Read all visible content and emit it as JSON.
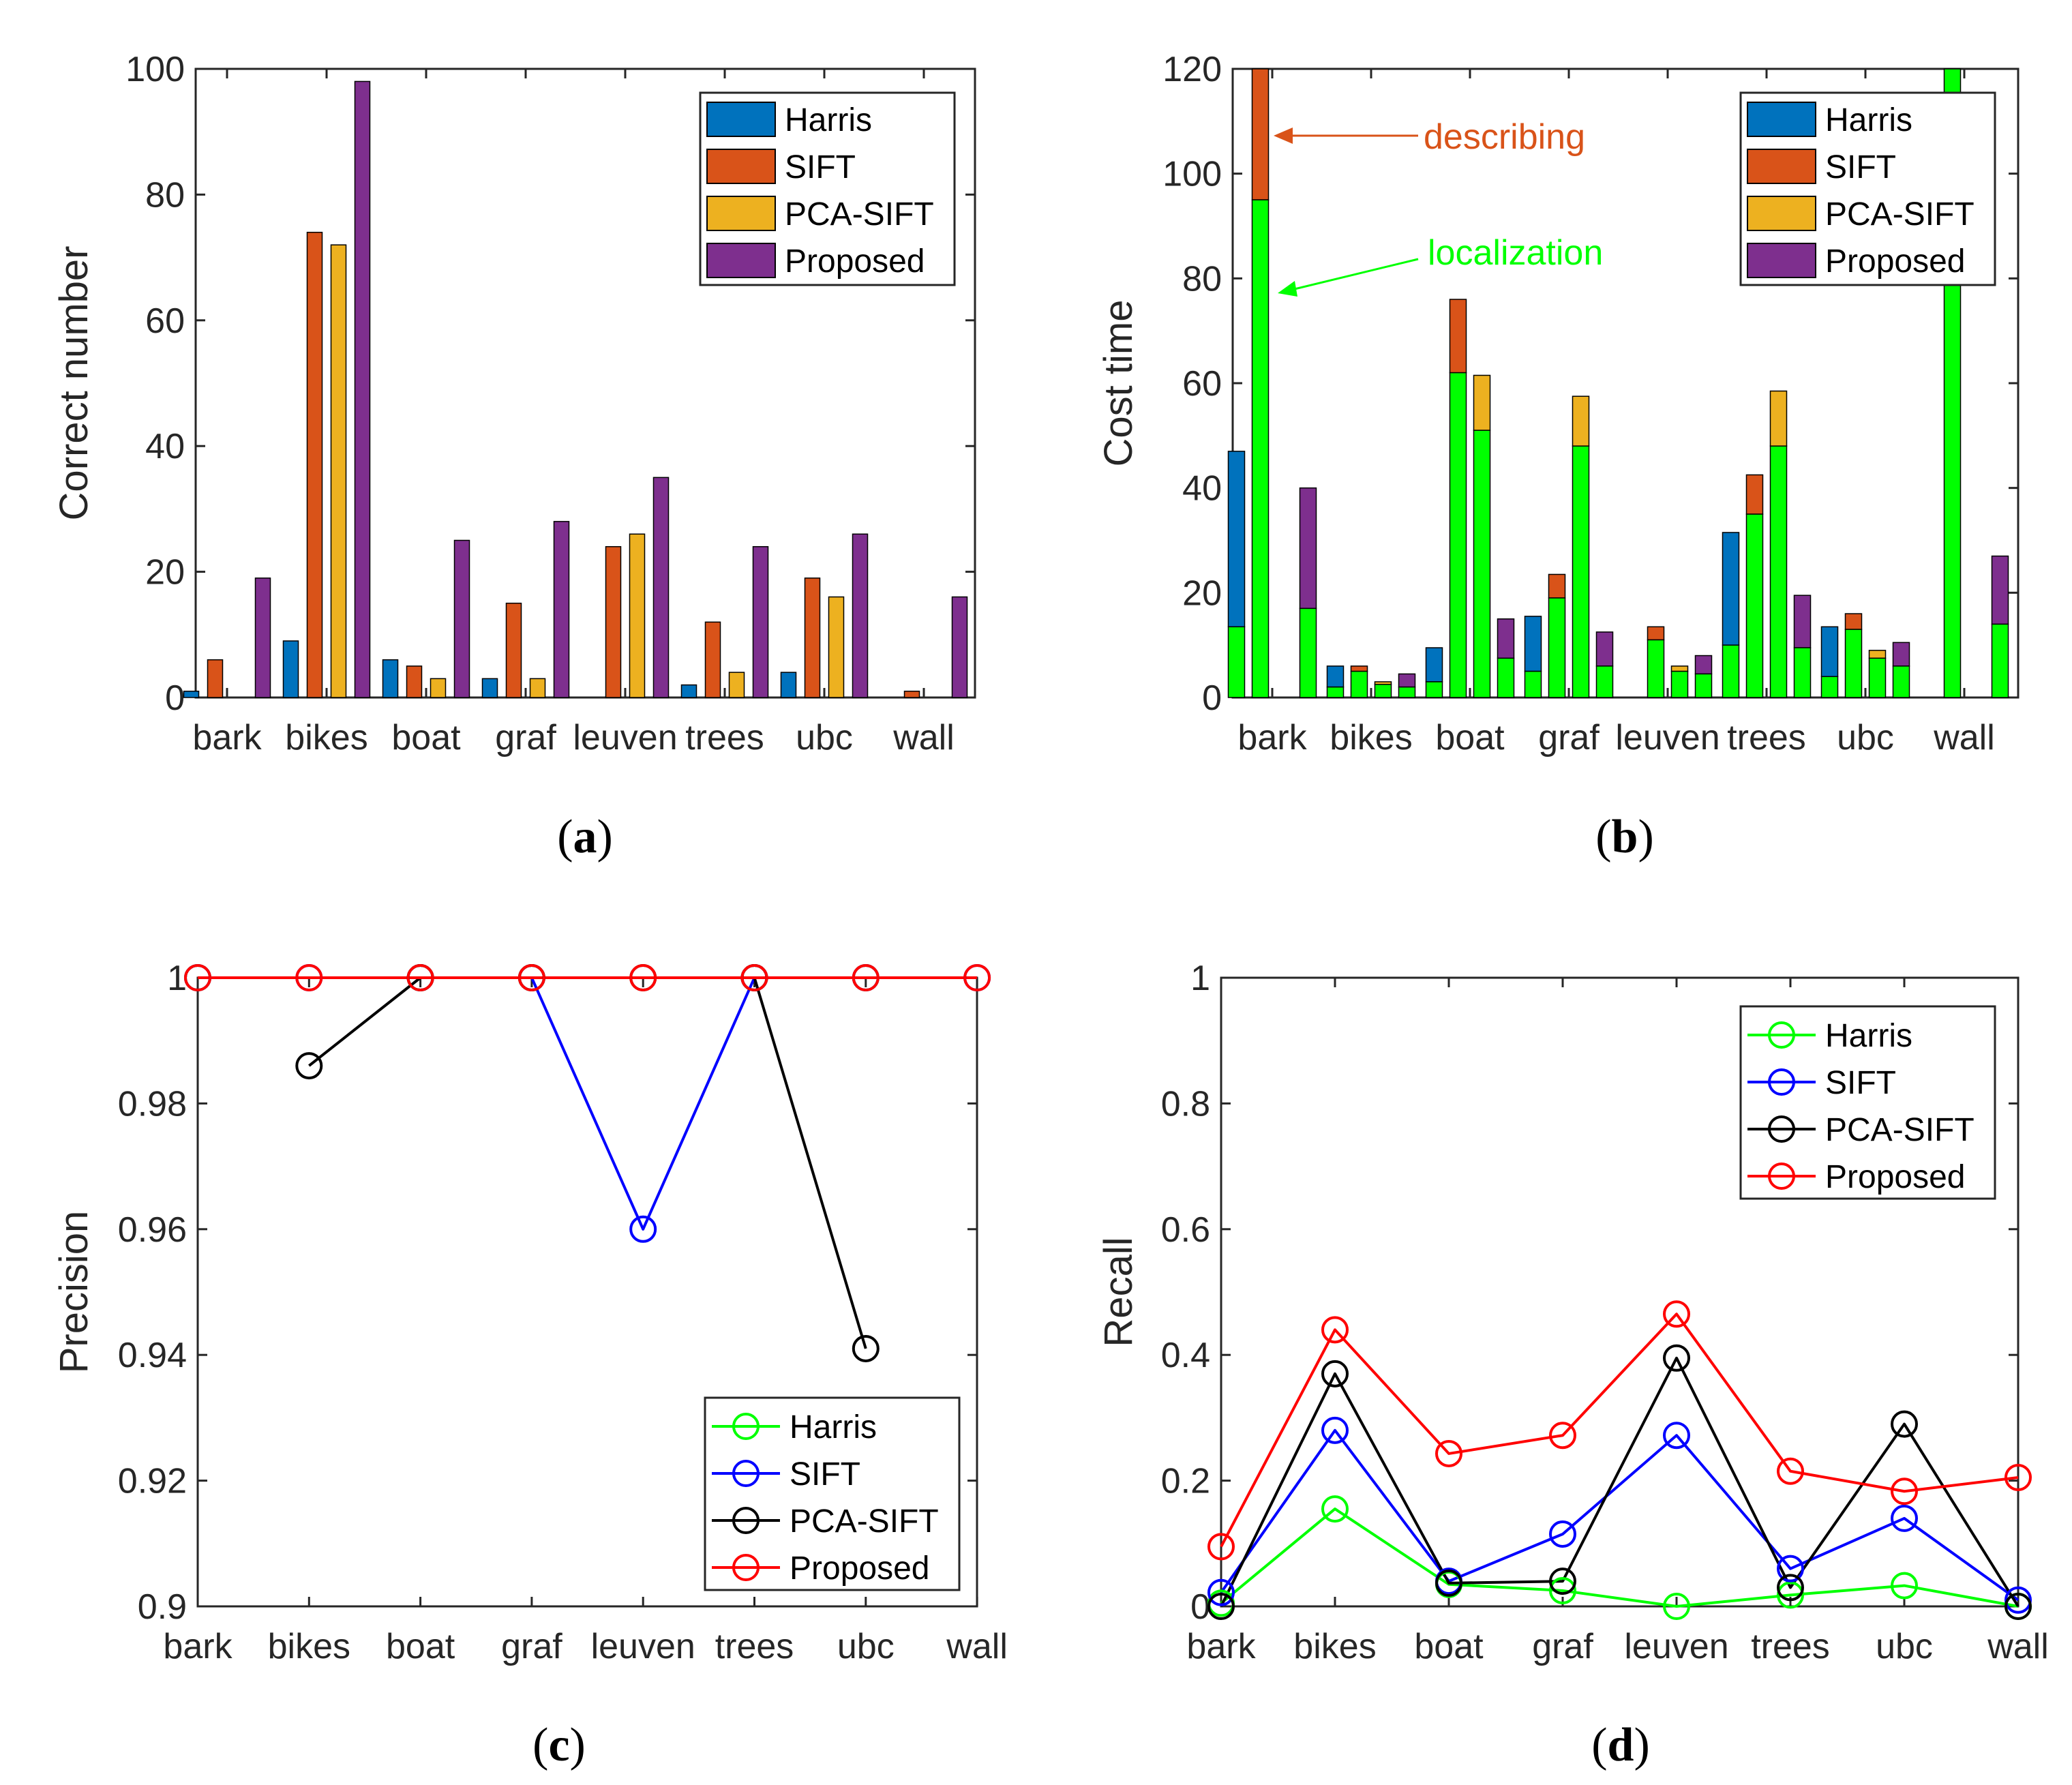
{
  "colors": {
    "harris_bar": "#0072BD",
    "sift_bar": "#D95319",
    "pca_bar": "#EDB120",
    "proposed_bar": "#7E2F8E",
    "localization": "#00FF00",
    "harris_line": "#00FF00",
    "sift_line": "#0000FF",
    "pca_line": "#000000",
    "proposed_line": "#FF0000"
  },
  "legend_labels": [
    "Harris",
    "SIFT",
    "PCA-SIFT",
    "Proposed"
  ],
  "captions": {
    "a": "a",
    "b": "b",
    "c": "c",
    "d": "d"
  },
  "chart_data": [
    {
      "id": "a",
      "type": "bar",
      "title": "",
      "ylabel": "Correct number",
      "categories": [
        "bark",
        "bikes",
        "boat",
        "graf",
        "leuven",
        "trees",
        "ubc",
        "wall"
      ],
      "ylim": [
        0,
        100
      ],
      "yticks": [
        0,
        20,
        40,
        60,
        80,
        100
      ],
      "legend_position": "top-right",
      "series": [
        {
          "name": "Harris",
          "values": [
            1,
            9,
            6,
            3,
            0,
            2,
            4,
            0
          ]
        },
        {
          "name": "SIFT",
          "values": [
            6,
            74,
            5,
            15,
            24,
            12,
            19,
            1
          ]
        },
        {
          "name": "PCA-SIFT",
          "values": [
            0,
            72,
            3,
            3,
            26,
            4,
            16,
            0
          ]
        },
        {
          "name": "Proposed",
          "values": [
            19,
            98,
            25,
            28,
            35,
            24,
            26,
            16
          ]
        }
      ]
    },
    {
      "id": "b",
      "type": "bar",
      "stacked": true,
      "title": "",
      "ylabel": "Cost time",
      "categories": [
        "bark",
        "bikes",
        "boat",
        "graf",
        "leuven",
        "trees",
        "ubc",
        "wall"
      ],
      "ylim": [
        0,
        120
      ],
      "yticks": [
        0,
        20,
        40,
        60,
        80,
        100,
        120
      ],
      "legend_position": "top-right",
      "stack_components": [
        "localization",
        "describing"
      ],
      "series": [
        {
          "name": "Harris",
          "localization": [
            13.5,
            2,
            3,
            5,
            0,
            10,
            4,
            0
          ],
          "total": [
            47,
            6,
            9.5,
            15.5,
            0,
            31.5,
            13.5,
            0
          ]
        },
        {
          "name": "SIFT",
          "localization": [
            95,
            5,
            62,
            19,
            11,
            35,
            13,
            120
          ],
          "total": [
            120,
            6,
            76,
            23.5,
            13.5,
            42.5,
            16,
            120
          ]
        },
        {
          "name": "PCA-SIFT",
          "localization": [
            0,
            2.5,
            51,
            48,
            5,
            48,
            7.5,
            0
          ],
          "total": [
            0,
            3,
            61.5,
            57.5,
            6,
            58.5,
            9,
            0
          ]
        },
        {
          "name": "Proposed",
          "localization": [
            17,
            2,
            7.5,
            6,
            4.5,
            9.5,
            6,
            14
          ],
          "total": [
            40,
            4.5,
            15,
            12.5,
            8,
            19.5,
            10.5,
            27
          ]
        }
      ],
      "annotations": [
        {
          "text": "describing",
          "target_category": "bark",
          "target_value": 107
        },
        {
          "text": "localization",
          "target_category": "bark",
          "target_value": 77
        }
      ]
    },
    {
      "id": "c",
      "type": "line",
      "title": "",
      "ylabel": "Precision",
      "categories": [
        "bark",
        "bikes",
        "boat",
        "graf",
        "leuven",
        "trees",
        "ubc",
        "wall"
      ],
      "ylim": [
        0.9,
        1
      ],
      "yticks": [
        "0.9",
        "0.92",
        "0.94",
        "0.96",
        "0.98",
        "1"
      ],
      "legend_position": "bottom-right",
      "series": [
        {
          "name": "Harris",
          "values": [
            1,
            null,
            1,
            1,
            null,
            1,
            1,
            null
          ]
        },
        {
          "name": "SIFT",
          "values": [
            1,
            1,
            1,
            1,
            0.96,
            1,
            1,
            1
          ]
        },
        {
          "name": "PCA-SIFT",
          "values": [
            null,
            0.986,
            1,
            1,
            1,
            1,
            0.941,
            null
          ]
        },
        {
          "name": "Proposed",
          "values": [
            1,
            1,
            1,
            1,
            1,
            1,
            1,
            1
          ]
        }
      ]
    },
    {
      "id": "d",
      "type": "line",
      "title": "",
      "ylabel": "Recall",
      "categories": [
        "bark",
        "bikes",
        "boat",
        "graf",
        "leuven",
        "trees",
        "ubc",
        "wall"
      ],
      "ylim": [
        0,
        1
      ],
      "yticks": [
        "0",
        "0.2",
        "0.4",
        "0.6",
        "0.8",
        "1"
      ],
      "legend_position": "top-right",
      "series": [
        {
          "name": "Harris",
          "values": [
            0.005,
            0.155,
            0.035,
            0.025,
            0.0,
            0.018,
            0.033,
            0.0
          ]
        },
        {
          "name": "SIFT",
          "values": [
            0.022,
            0.28,
            0.04,
            0.115,
            0.272,
            0.06,
            0.14,
            0.01
          ]
        },
        {
          "name": "PCA-SIFT",
          "values": [
            0.0,
            0.37,
            0.037,
            0.04,
            0.395,
            0.03,
            0.29,
            0.0
          ]
        },
        {
          "name": "Proposed",
          "values": [
            0.095,
            0.44,
            0.243,
            0.272,
            0.465,
            0.215,
            0.183,
            0.205
          ]
        }
      ]
    }
  ]
}
